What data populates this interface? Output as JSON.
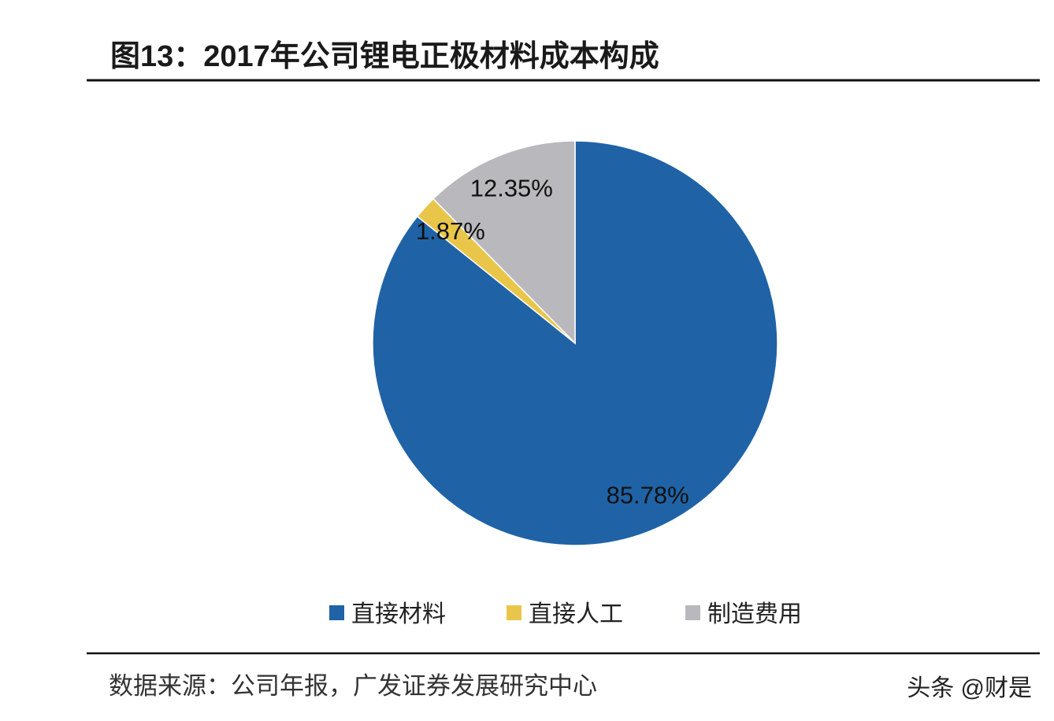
{
  "chart_data": {
    "type": "pie",
    "title": "图13：2017年公司锂电正极材料成本构成",
    "categories": [
      "直接材料",
      "直接人工",
      "制造费用"
    ],
    "values": [
      85.78,
      1.87,
      12.35
    ],
    "value_labels": [
      "85.78%",
      "1.87%",
      "12.35%"
    ],
    "colors": [
      "#1f63a6",
      "#e9c64a",
      "#b9b9bd"
    ],
    "source": "数据来源：公司年报，广发证券发展研究中心",
    "watermark": "头条 @财是"
  }
}
